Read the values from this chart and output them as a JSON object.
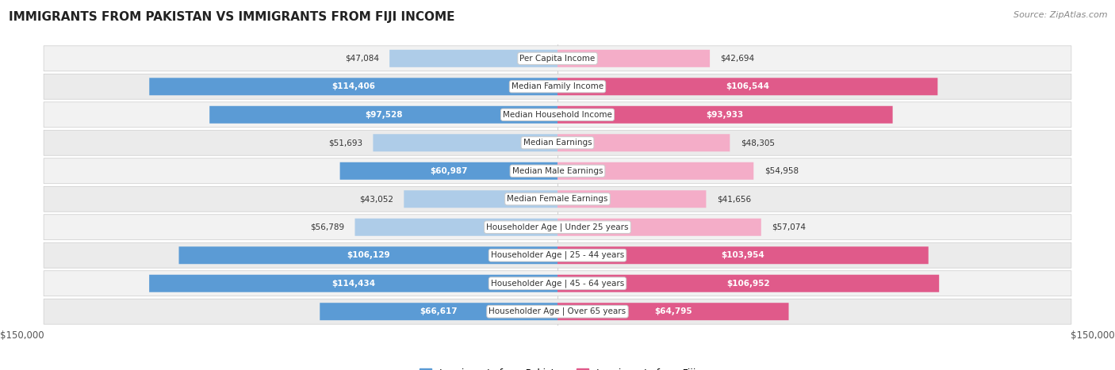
{
  "title": "IMMIGRANTS FROM PAKISTAN VS IMMIGRANTS FROM FIJI INCOME",
  "source": "Source: ZipAtlas.com",
  "categories": [
    "Per Capita Income",
    "Median Family Income",
    "Median Household Income",
    "Median Earnings",
    "Median Male Earnings",
    "Median Female Earnings",
    "Householder Age | Under 25 years",
    "Householder Age | 25 - 44 years",
    "Householder Age | 45 - 64 years",
    "Householder Age | Over 65 years"
  ],
  "pakistan_values": [
    47084,
    114406,
    97528,
    51693,
    60987,
    43052,
    56789,
    106129,
    114434,
    66617
  ],
  "fiji_values": [
    42694,
    106544,
    93933,
    48305,
    54958,
    41656,
    57074,
    103954,
    106952,
    64795
  ],
  "pakistan_labels": [
    "$47,084",
    "$114,406",
    "$97,528",
    "$51,693",
    "$60,987",
    "$43,052",
    "$56,789",
    "$106,129",
    "$114,434",
    "$66,617"
  ],
  "fiji_labels": [
    "$42,694",
    "$106,544",
    "$93,933",
    "$48,305",
    "$54,958",
    "$41,656",
    "$57,074",
    "$103,954",
    "$106,952",
    "$64,795"
  ],
  "pakistan_color_light": "#aecce8",
  "pakistan_color_dark": "#5b9bd5",
  "fiji_color_light": "#f4adc8",
  "fiji_color_dark": "#e05a8a",
  "max_value": 150000,
  "bar_height": 0.62,
  "legend_pakistan": "Immigrants from Pakistan",
  "legend_fiji": "Immigrants from Fiji",
  "inside_label_threshold": 60000
}
